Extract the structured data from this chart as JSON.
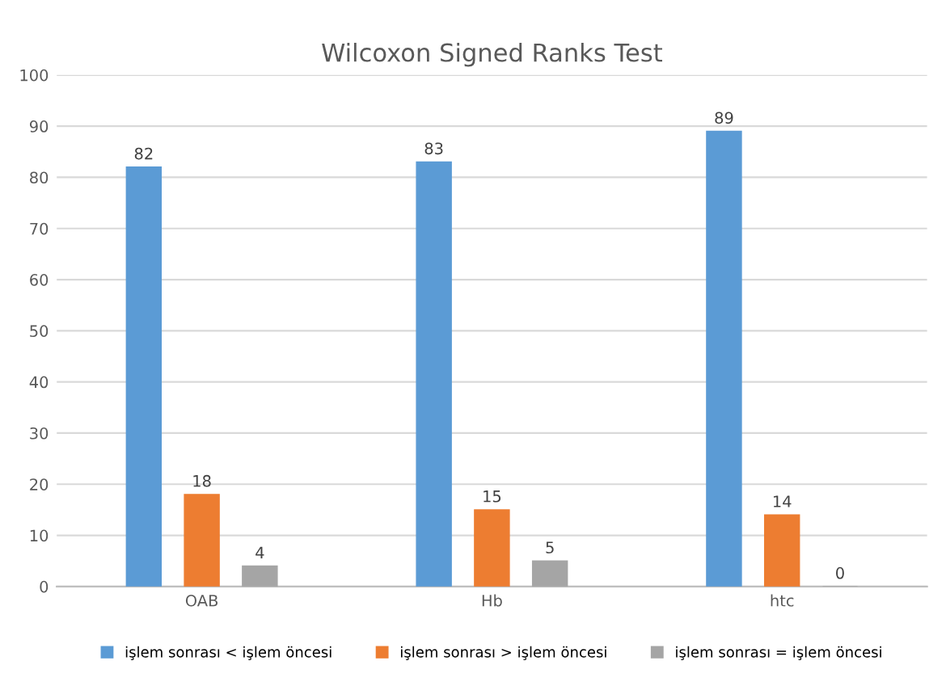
{
  "chart_data": {
    "type": "bar",
    "title": "Wilcoxon Signed Ranks Test",
    "categories": [
      "OAB",
      "Hb",
      "htc"
    ],
    "series": [
      {
        "name": "işlem sonrası < işlem öncesi",
        "color": "#5b9bd5",
        "values": [
          82,
          83,
          89
        ]
      },
      {
        "name": "işlem sonrası > işlem öncesi",
        "color": "#ed7d31",
        "values": [
          18,
          15,
          14
        ]
      },
      {
        "name": "işlem sonrası = işlem öncesi",
        "color": "#a5a5a5",
        "values": [
          4,
          5,
          0
        ]
      }
    ],
    "ylim": [
      0,
      100
    ],
    "yticks": [
      0,
      10,
      20,
      30,
      40,
      50,
      60,
      70,
      80,
      90,
      100
    ],
    "grid": "y",
    "legend": "bottom",
    "data_labels": true
  }
}
